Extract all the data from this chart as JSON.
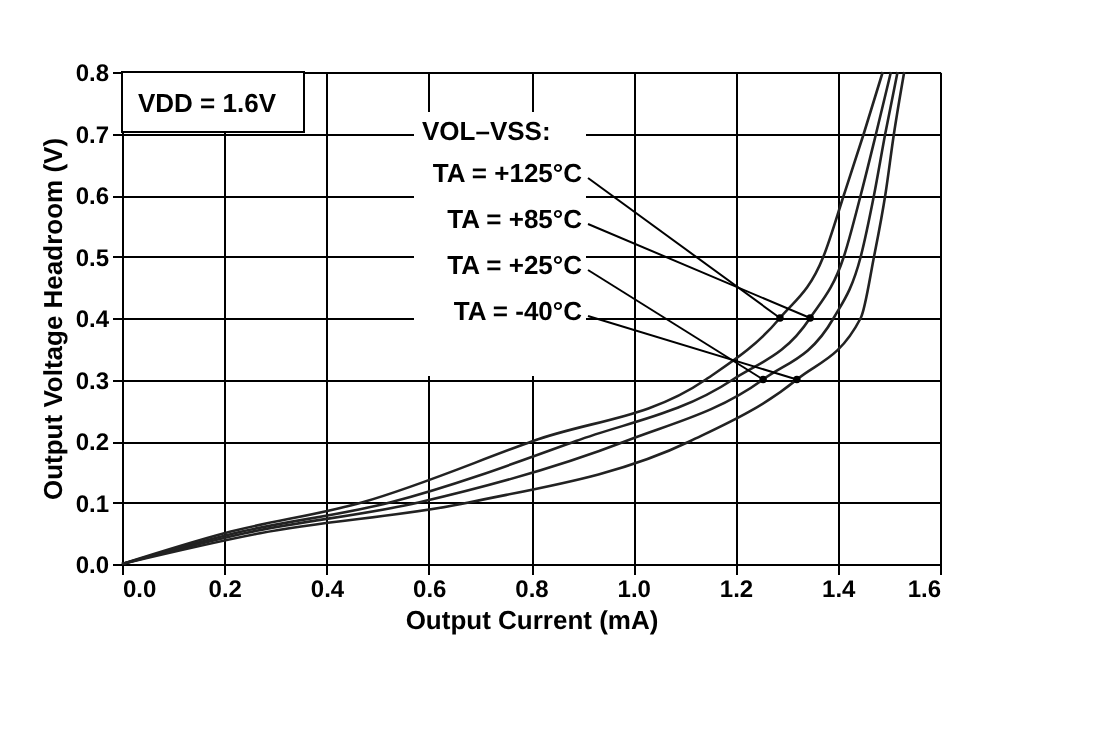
{
  "chart_data": {
    "type": "line",
    "xlabel": "Output Current (mA)",
    "ylabel": "Output Voltage Headroom (V)",
    "xlim": [
      0,
      1.6
    ],
    "xticks": [
      {
        "value": 0,
        "label": "0.0"
      },
      0.2,
      0.4,
      0.6,
      0.8,
      {
        "value": 1,
        "label": "1.0"
      },
      1.2,
      1.4,
      1.6
    ],
    "ylim": [
      0,
      0.8
    ],
    "yticks": [
      {
        "value": 0,
        "label": "0.0"
      },
      0.1,
      0.2,
      0.3,
      0.4,
      0.5,
      0.6,
      0.7,
      0.8
    ],
    "grid": true,
    "marker": "none",
    "line_style": "solid",
    "annotations": [
      "VDD = 1.6V",
      "VOL–VSS:"
    ],
    "series": [
      {
        "name": "TA = +125°C",
        "color": "#222222",
        "x": [
          0,
          0.2,
          0.469,
          0.804,
          1.142,
          1.287,
          1.372,
          1.412,
          1.451,
          1.488
        ],
        "values": [
          0,
          0.05,
          0.1,
          0.2,
          0.3,
          0.4,
          0.5,
          0.6,
          0.7,
          0.8
        ]
      },
      {
        "name": "TA =   +85°C",
        "color": "#222222",
        "x": [
          0,
          0.22,
          0.524,
          0.888,
          1.195,
          1.346,
          1.412,
          1.445,
          1.475,
          1.504
        ],
        "values": [
          0,
          0.05,
          0.1,
          0.2,
          0.3,
          0.4,
          0.5,
          0.6,
          0.7,
          0.8
        ]
      },
      {
        "name": "TA =   +25°C",
        "color": "#222222",
        "x": [
          0,
          0.24,
          0.58,
          0.986,
          1.254,
          1.392,
          1.445,
          1.471,
          1.493,
          1.517
        ],
        "values": [
          0,
          0.05,
          0.1,
          0.2,
          0.3,
          0.4,
          0.5,
          0.6,
          0.7,
          0.8
        ]
      },
      {
        "name": "TA =    -40°C",
        "color": "#222222",
        "x": [
          0,
          0.27,
          0.678,
          1.112,
          1.32,
          1.445,
          1.471,
          1.493,
          1.51,
          1.53
        ],
        "values": [
          0,
          0.05,
          0.1,
          0.2,
          0.3,
          0.4,
          0.5,
          0.6,
          0.7,
          0.8
        ]
      }
    ]
  }
}
